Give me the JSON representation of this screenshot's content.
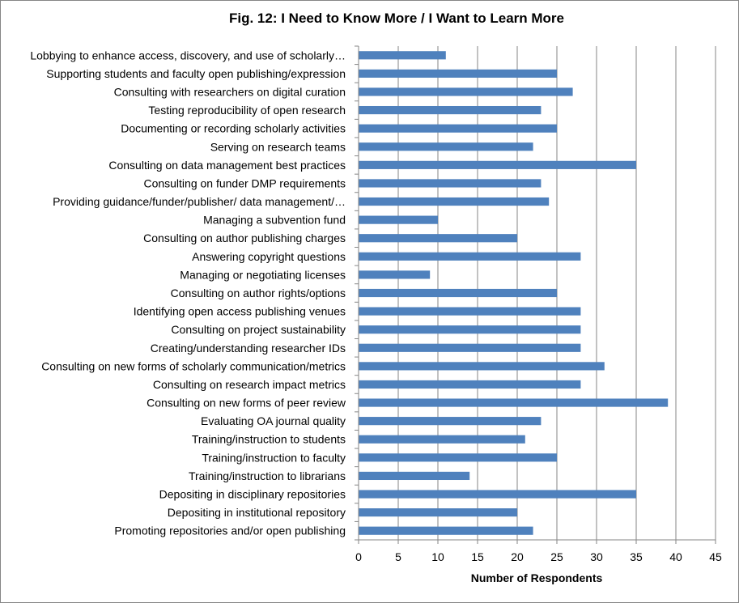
{
  "chart_data": {
    "type": "bar",
    "orientation": "horizontal",
    "title": "Fig. 12: I Need to Know More / I Want to Learn More",
    "xlabel": "Number of Respondents",
    "ylabel": "",
    "xlim": [
      0,
      45
    ],
    "xticks": [
      0,
      5,
      10,
      15,
      20,
      25,
      30,
      35,
      40,
      45
    ],
    "grid": "vertical",
    "legend": "none",
    "bar_color": "#4F81BD",
    "categories": [
      "Lobbying to enhance access, discovery, and use of scholarly…",
      "Supporting students and faculty open publishing/expression",
      "Consulting with researchers on digital curation",
      "Testing reproducibility of open research",
      "Documenting or recording scholarly activities",
      "Serving on research teams",
      "Consulting on data management best practices",
      "Consulting on funder DMP requirements",
      "Providing guidance/funder/publisher/ data management/…",
      "Managing a subvention fund",
      "Consulting  on author publishing charges",
      "Answering copyright questions",
      "Managing or negotiating licenses",
      "Consulting on author rights/options",
      "Identifying open access publishing venues",
      "Consulting on project sustainability",
      "Creating/understanding researcher IDs",
      "Consulting on new forms of scholarly communication/metrics",
      "Consulting on research impact metrics",
      "Consulting on new forms of peer review",
      "Evaluating OA journal quality",
      "Training/instruction to students",
      "Training/instruction to faculty",
      "Training/instruction to librarians",
      "Depositing in disciplinary repositories",
      "Depositing in institutional repository",
      "Promoting repositories and/or open publishing"
    ],
    "values": [
      11,
      25,
      27,
      23,
      25,
      22,
      35,
      23,
      24,
      10,
      20,
      28,
      9,
      25,
      28,
      28,
      28,
      31,
      28,
      39,
      23,
      21,
      25,
      14,
      35,
      20,
      22
    ]
  }
}
